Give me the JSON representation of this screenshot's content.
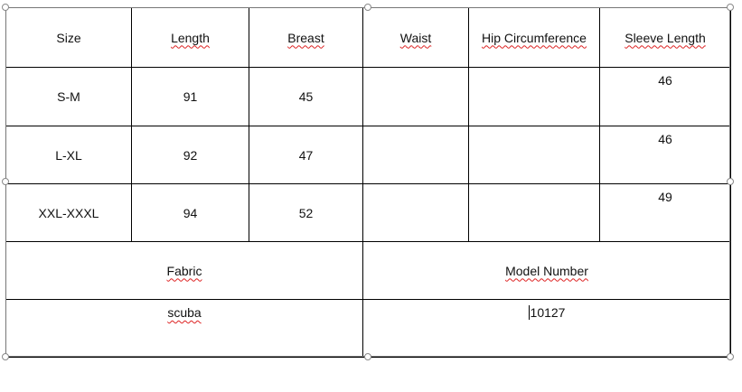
{
  "table": {
    "headers": [
      {
        "text": "Size",
        "spell": false
      },
      {
        "text": "Length",
        "spell": true
      },
      {
        "text": "Breast",
        "spell": true
      },
      {
        "text": "Waist",
        "spell": true
      },
      {
        "text": "Hip Circumference",
        "spell": true
      },
      {
        "text": "Sleeve Length",
        "spell": true
      }
    ],
    "rows": [
      [
        "S-M",
        "91",
        "45",
        "",
        "",
        "46"
      ],
      [
        "L-XL",
        "92",
        "47",
        "",
        "",
        "46"
      ],
      [
        "XXL-XXXL",
        "94",
        "52",
        "",
        "",
        "49"
      ]
    ],
    "footer_headers": [
      {
        "text": "Fabric",
        "spell": true
      },
      {
        "text": "Model Number",
        "spell": true
      }
    ],
    "footer_values": [
      {
        "text": "scuba",
        "spell": true
      },
      {
        "text": "10127",
        "spell": false,
        "caret": true
      }
    ]
  },
  "colors": {
    "border": "#000000",
    "spellcheck": "#dd2222",
    "handle": "#888888"
  }
}
